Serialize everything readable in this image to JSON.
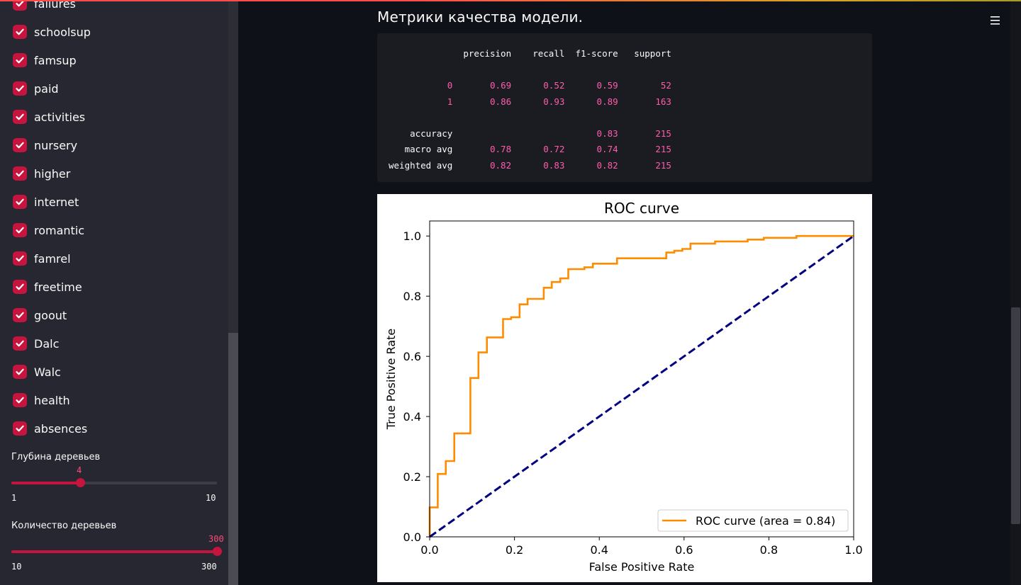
{
  "sidebar": {
    "features": [
      {
        "label": "failures",
        "checked": true
      },
      {
        "label": "schoolsup",
        "checked": true
      },
      {
        "label": "famsup",
        "checked": true
      },
      {
        "label": "paid",
        "checked": true
      },
      {
        "label": "activities",
        "checked": true
      },
      {
        "label": "nursery",
        "checked": true
      },
      {
        "label": "higher",
        "checked": true
      },
      {
        "label": "internet",
        "checked": true
      },
      {
        "label": "romantic",
        "checked": true
      },
      {
        "label": "famrel",
        "checked": true
      },
      {
        "label": "freetime",
        "checked": true
      },
      {
        "label": "goout",
        "checked": true
      },
      {
        "label": "Dalc",
        "checked": true
      },
      {
        "label": "Walc",
        "checked": true
      },
      {
        "label": "health",
        "checked": true
      },
      {
        "label": "absences",
        "checked": true
      }
    ],
    "depth_slider": {
      "label": "Глубина деревьев",
      "value": "4",
      "min": "1",
      "max": "10"
    },
    "trees_slider": {
      "label": "Количество деревьев",
      "value": "300",
      "min": "10",
      "max": "300"
    }
  },
  "main": {
    "title": "Метрики качества модели.",
    "report": {
      "header": [
        "precision",
        "recall",
        "f1-score",
        "support"
      ],
      "rows": [
        {
          "label": "0",
          "values": [
            "0.69",
            "0.52",
            "0.59",
            "52"
          ]
        },
        {
          "label": "1",
          "values": [
            "0.86",
            "0.93",
            "0.89",
            "163"
          ]
        }
      ],
      "summary": [
        {
          "label": "accuracy",
          "values": [
            "",
            "",
            "0.83",
            "215"
          ]
        },
        {
          "label": "macro avg",
          "values": [
            "0.78",
            "0.72",
            "0.74",
            "215"
          ]
        },
        {
          "label": "weighted avg",
          "values": [
            "0.82",
            "0.83",
            "0.82",
            "215"
          ]
        }
      ]
    }
  },
  "colors": {
    "accent": "#c5153f",
    "code_number": "#ff5cac",
    "roc_line": "#ff8c00",
    "diagonal": "#000080"
  },
  "chart_data": {
    "type": "line",
    "title": "ROC curve",
    "xlabel": "False Positive Rate",
    "ylabel": "True Positive Rate",
    "xlim": [
      0.0,
      1.0
    ],
    "ylim": [
      0.0,
      1.05
    ],
    "xticks": [
      "0.0",
      "0.2",
      "0.4",
      "0.6",
      "0.8",
      "1.0"
    ],
    "yticks": [
      "0.0",
      "0.2",
      "0.4",
      "0.6",
      "0.8",
      "1.0"
    ],
    "legend_position": "lower-right",
    "series": [
      {
        "name": "ROC curve (area = 0.84)",
        "color": "#ff8c00",
        "style": "solid",
        "x": [
          0.0,
          0.0,
          0.0,
          0.019,
          0.019,
          0.038,
          0.038,
          0.058,
          0.058,
          0.096,
          0.096,
          0.115,
          0.115,
          0.135,
          0.135,
          0.173,
          0.173,
          0.192,
          0.192,
          0.212,
          0.212,
          0.231,
          0.231,
          0.269,
          0.269,
          0.288,
          0.288,
          0.308,
          0.308,
          0.327,
          0.327,
          0.365,
          0.365,
          0.385,
          0.385,
          0.442,
          0.442,
          0.558,
          0.558,
          0.577,
          0.577,
          0.596,
          0.596,
          0.615,
          0.615,
          0.673,
          0.673,
          0.75,
          0.75,
          0.788,
          0.788,
          0.865,
          0.865,
          1.0
        ],
        "y": [
          0.0,
          0.006,
          0.098,
          0.098,
          0.209,
          0.209,
          0.252,
          0.252,
          0.344,
          0.344,
          0.528,
          0.528,
          0.613,
          0.613,
          0.663,
          0.663,
          0.724,
          0.724,
          0.73,
          0.73,
          0.773,
          0.773,
          0.791,
          0.791,
          0.828,
          0.828,
          0.847,
          0.847,
          0.859,
          0.859,
          0.89,
          0.89,
          0.896,
          0.896,
          0.908,
          0.908,
          0.926,
          0.926,
          0.945,
          0.945,
          0.951,
          0.951,
          0.957,
          0.957,
          0.975,
          0.975,
          0.982,
          0.982,
          0.988,
          0.988,
          0.994,
          0.994,
          1.0,
          1.0
        ]
      },
      {
        "name": "",
        "color": "#000080",
        "style": "dashed",
        "x": [
          0.0,
          1.0
        ],
        "y": [
          0.0,
          1.0
        ]
      }
    ]
  }
}
